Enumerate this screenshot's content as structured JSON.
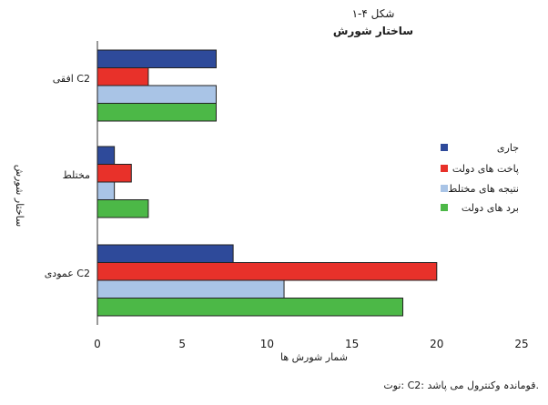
{
  "chart_data": {
    "type": "bar",
    "orientation": "horizontal",
    "title": "شکل ۴-۱",
    "subtitle": "ساختار شورش",
    "xlabel": "شمار شورش ها",
    "ylabel": "ساختار شورش",
    "xlim": [
      0,
      25
    ],
    "xticks": [
      "0",
      "5",
      "10",
      "15",
      "20",
      "25"
    ],
    "categories": [
      "افقی C2",
      "مختلط",
      "عمودی C2"
    ],
    "series": [
      {
        "name": "جاری",
        "color": "#2e4a9a",
        "values": [
          7,
          1,
          8
        ]
      },
      {
        "name": "پاخت های دولت",
        "color": "#e8312a",
        "values": [
          3,
          2,
          20
        ]
      },
      {
        "name": "نتیجه های مختلط",
        "color": "#a9c4e6",
        "values": [
          7,
          1,
          11
        ]
      },
      {
        "name": "برد های دولت",
        "color": "#4cb847",
        "values": [
          7,
          3,
          18
        ]
      }
    ],
    "legend_position": "right",
    "grid": false,
    "note": "نوت: C2: قوماندہ وکنترول می پاشد."
  }
}
